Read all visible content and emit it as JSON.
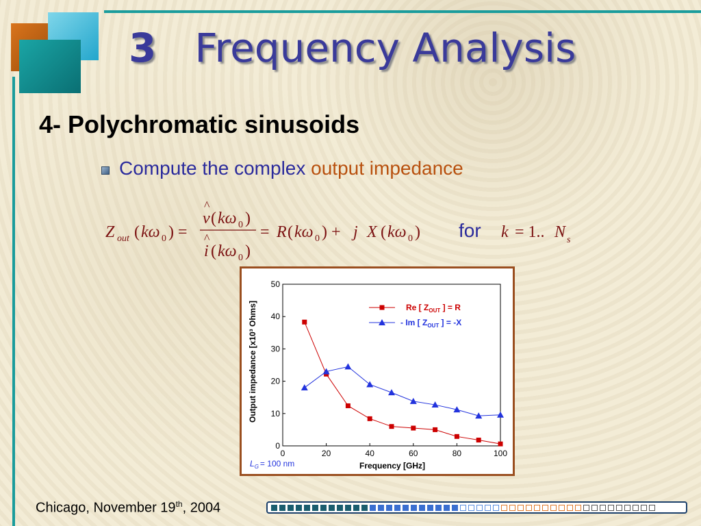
{
  "slide": {
    "title_number": "3",
    "title_text": "Frequency Analysis",
    "subtitle": "4- Polychromatic sinusoids",
    "bullet_plain": "Compute the complex",
    "bullet_highlight": "output impedance",
    "for_label": "for",
    "footer_prefix": "Chicago, November 19",
    "footer_sup": "th",
    "footer_suffix": ", 2004",
    "lg_label": "= 100 nm"
  },
  "colors": {
    "title": "#3a3a9a",
    "teal_rule": "#1a9c9c",
    "bullet_blue": "#2a2a9c",
    "bullet_orange": "#b8500e",
    "chart_border": "#9a4e1f",
    "series_re": "#cc0000",
    "series_im": "#2233dd"
  },
  "progress_bar": {
    "segments": [
      {
        "style": "dark-teal",
        "count": 12
      },
      {
        "style": "blue",
        "count": 11
      },
      {
        "style": "light-blue-outline",
        "count": 5
      },
      {
        "style": "orange-outline",
        "count": 10
      },
      {
        "style": "white-outline",
        "count": 9
      }
    ]
  },
  "chart_data": {
    "type": "line",
    "xlabel": "Frequency   [GHz]",
    "ylabel": "Output impedance    [x10³ Ohms]",
    "xlim": [
      0,
      100
    ],
    "ylim": [
      0,
      50
    ],
    "xticks": [
      0,
      20,
      40,
      60,
      80,
      100
    ],
    "yticks": [
      0,
      10,
      20,
      30,
      40,
      50
    ],
    "grid": false,
    "legend_position": "top-right",
    "series": [
      {
        "name": "Re [ Z_OUT ] = R",
        "legend_parts": [
          "Re [ Z",
          "OUT",
          " ] = R"
        ],
        "marker": "square",
        "color": "#cc0000",
        "x": [
          10,
          20,
          30,
          40,
          50,
          60,
          70,
          80,
          90,
          100
        ],
        "y": [
          38.3,
          22.2,
          12.4,
          8.4,
          6.0,
          5.5,
          5.0,
          2.9,
          1.8,
          0.6
        ]
      },
      {
        "name": "- Im [ Z_OUT ] = -X",
        "legend_parts": [
          "- Im [ Z",
          "OUT",
          " ] = -X"
        ],
        "marker": "triangle",
        "color": "#2233dd",
        "x": [
          10,
          20,
          30,
          40,
          50,
          60,
          70,
          80,
          90,
          100
        ],
        "y": [
          18.0,
          23.0,
          24.5,
          19.0,
          16.5,
          13.8,
          12.7,
          11.2,
          9.3,
          9.6
        ]
      }
    ]
  }
}
